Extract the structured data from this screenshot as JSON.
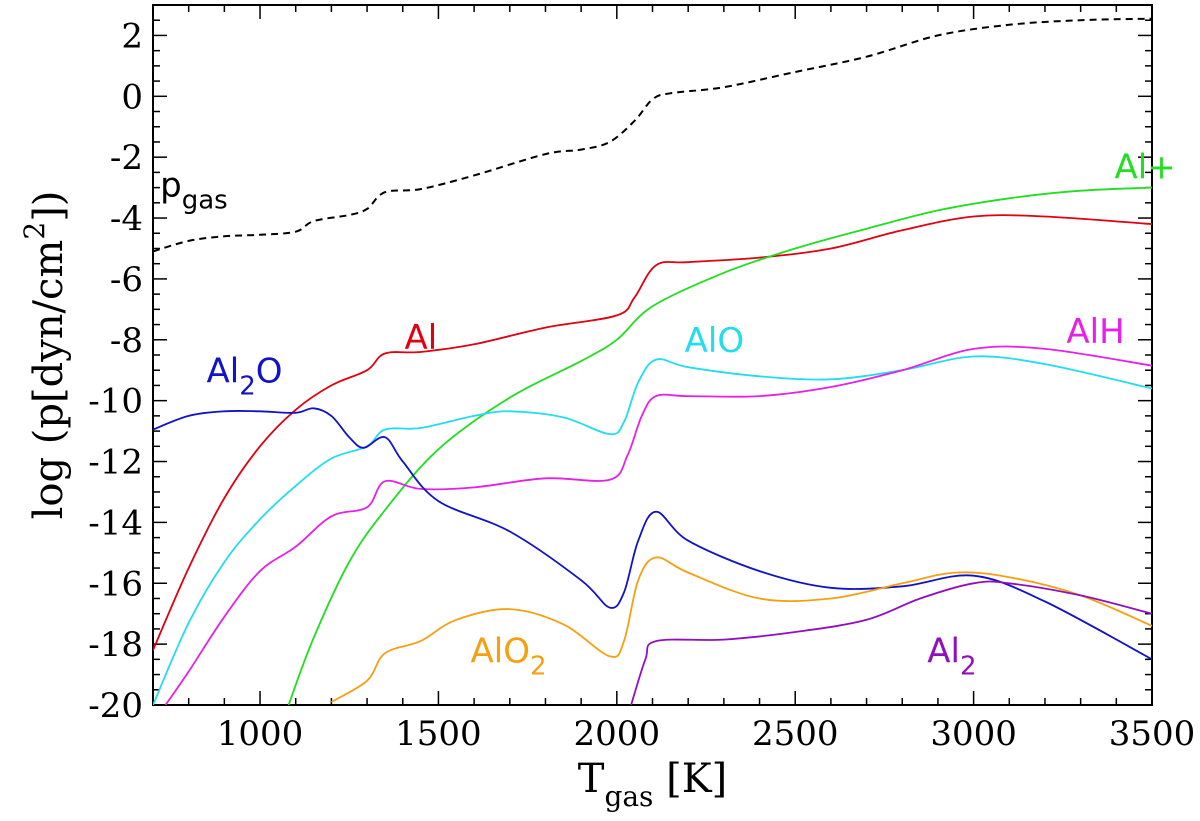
{
  "chart_data": {
    "type": "line",
    "xlabel": {
      "main": "T",
      "sub": "gas",
      "unit": " [K]"
    },
    "ylabel": {
      "a": "log (p[dyn/cm",
      "sup": "2",
      "b": "])"
    },
    "xlim": [
      700,
      3500
    ],
    "ylim": [
      -20,
      3
    ],
    "xticks": [
      1000,
      1500,
      2000,
      2500,
      3000,
      3500
    ],
    "yticks": [
      2,
      0,
      -2,
      -4,
      -6,
      -8,
      -10,
      -12,
      -14,
      -16,
      -18,
      -20
    ],
    "series": [
      {
        "name": "pgas",
        "label": {
          "main": "p",
          "sub": "gas",
          "post": ""
        },
        "color": "#000000",
        "dashed": true,
        "label_at": [
          720,
          -3.3
        ],
        "points": [
          [
            700,
            -5.1
          ],
          [
            800,
            -4.75
          ],
          [
            900,
            -4.6
          ],
          [
            1000,
            -4.55
          ],
          [
            1100,
            -4.45
          ],
          [
            1150,
            -4.1
          ],
          [
            1250,
            -3.9
          ],
          [
            1300,
            -3.7
          ],
          [
            1350,
            -3.15
          ],
          [
            1450,
            -3.05
          ],
          [
            1600,
            -2.6
          ],
          [
            1800,
            -1.9
          ],
          [
            1900,
            -1.75
          ],
          [
            1980,
            -1.5
          ],
          [
            2050,
            -0.8
          ],
          [
            2100,
            -0.1
          ],
          [
            2150,
            0.1
          ],
          [
            2300,
            0.3
          ],
          [
            2500,
            0.8
          ],
          [
            2700,
            1.3
          ],
          [
            2900,
            2.0
          ],
          [
            3100,
            2.35
          ],
          [
            3300,
            2.5
          ],
          [
            3500,
            2.55
          ]
        ]
      },
      {
        "name": "Al",
        "label": {
          "main": "Al",
          "sub": "",
          "post": ""
        },
        "color": "#e0000f",
        "dashed": false,
        "label_at": [
          1405,
          -8.3
        ],
        "points": [
          [
            700,
            -18.2
          ],
          [
            800,
            -15.5
          ],
          [
            900,
            -13.2
          ],
          [
            1000,
            -11.5
          ],
          [
            1100,
            -10.3
          ],
          [
            1200,
            -9.5
          ],
          [
            1300,
            -9.0
          ],
          [
            1350,
            -8.45
          ],
          [
            1450,
            -8.4
          ],
          [
            1600,
            -8.15
          ],
          [
            1800,
            -7.6
          ],
          [
            2000,
            -7.2
          ],
          [
            2050,
            -6.6
          ],
          [
            2110,
            -5.55
          ],
          [
            2200,
            -5.45
          ],
          [
            2400,
            -5.3
          ],
          [
            2600,
            -5.0
          ],
          [
            2800,
            -4.4
          ],
          [
            3000,
            -3.95
          ],
          [
            3200,
            -3.95
          ],
          [
            3500,
            -4.2
          ]
        ]
      },
      {
        "name": "Al+",
        "label": {
          "main": "Al+",
          "sub": "",
          "post": ""
        },
        "color": "#22dd22",
        "dashed": false,
        "label_at": [
          3395,
          -2.7
        ],
        "points": [
          [
            1080,
            -20.0
          ],
          [
            1150,
            -17.8
          ],
          [
            1250,
            -15.3
          ],
          [
            1350,
            -13.6
          ],
          [
            1500,
            -11.6
          ],
          [
            1700,
            -9.9
          ],
          [
            1900,
            -8.7
          ],
          [
            2000,
            -8.0
          ],
          [
            2100,
            -6.9
          ],
          [
            2300,
            -5.8
          ],
          [
            2500,
            -5.0
          ],
          [
            2700,
            -4.35
          ],
          [
            2900,
            -3.75
          ],
          [
            3100,
            -3.35
          ],
          [
            3300,
            -3.1
          ],
          [
            3500,
            -3.0
          ]
        ]
      },
      {
        "name": "AlO",
        "label": {
          "main": "AlO",
          "sub": "",
          "post": ""
        },
        "color": "#22ddee",
        "dashed": false,
        "label_at": [
          2190,
          -8.4
        ],
        "points": [
          [
            700,
            -20.0
          ],
          [
            800,
            -17.3
          ],
          [
            900,
            -15.3
          ],
          [
            1000,
            -13.9
          ],
          [
            1100,
            -12.8
          ],
          [
            1200,
            -11.9
          ],
          [
            1300,
            -11.5
          ],
          [
            1350,
            -10.95
          ],
          [
            1450,
            -10.9
          ],
          [
            1600,
            -10.5
          ],
          [
            1700,
            -10.35
          ],
          [
            1850,
            -10.55
          ],
          [
            1980,
            -11.1
          ],
          [
            2020,
            -10.7
          ],
          [
            2060,
            -9.4
          ],
          [
            2110,
            -8.65
          ],
          [
            2200,
            -8.9
          ],
          [
            2400,
            -9.2
          ],
          [
            2600,
            -9.3
          ],
          [
            2800,
            -9.0
          ],
          [
            3000,
            -8.55
          ],
          [
            3200,
            -8.8
          ],
          [
            3500,
            -9.6
          ]
        ]
      },
      {
        "name": "AlH",
        "label": {
          "main": "AlH",
          "sub": "",
          "post": ""
        },
        "color": "#e620e6",
        "dashed": false,
        "label_at": [
          3260,
          -8.1
        ],
        "points": [
          [
            735,
            -20.0
          ],
          [
            800,
            -18.9
          ],
          [
            900,
            -17.1
          ],
          [
            1000,
            -15.6
          ],
          [
            1100,
            -14.8
          ],
          [
            1200,
            -13.8
          ],
          [
            1300,
            -13.5
          ],
          [
            1350,
            -12.65
          ],
          [
            1450,
            -12.9
          ],
          [
            1600,
            -12.85
          ],
          [
            1800,
            -12.55
          ],
          [
            1980,
            -12.6
          ],
          [
            2030,
            -11.8
          ],
          [
            2070,
            -10.5
          ],
          [
            2110,
            -9.85
          ],
          [
            2200,
            -9.85
          ],
          [
            2400,
            -9.85
          ],
          [
            2600,
            -9.55
          ],
          [
            2800,
            -9.0
          ],
          [
            3000,
            -8.3
          ],
          [
            3200,
            -8.3
          ],
          [
            3500,
            -8.85
          ]
        ]
      },
      {
        "name": "Al2O",
        "label": {
          "main": "Al",
          "sub": "2",
          "post": "O"
        },
        "color": "#1212c8",
        "dashed": false,
        "label_at": [
          850,
          -9.4
        ],
        "points": [
          [
            700,
            -10.95
          ],
          [
            800,
            -10.5
          ],
          [
            900,
            -10.35
          ],
          [
            1000,
            -10.35
          ],
          [
            1100,
            -10.4
          ],
          [
            1150,
            -10.25
          ],
          [
            1200,
            -10.5
          ],
          [
            1250,
            -11.2
          ],
          [
            1290,
            -11.55
          ],
          [
            1350,
            -11.2
          ],
          [
            1400,
            -12.0
          ],
          [
            1500,
            -13.3
          ],
          [
            1700,
            -14.3
          ],
          [
            1900,
            -15.9
          ],
          [
            1980,
            -16.8
          ],
          [
            2020,
            -16.3
          ],
          [
            2060,
            -14.6
          ],
          [
            2110,
            -13.65
          ],
          [
            2200,
            -14.6
          ],
          [
            2400,
            -15.6
          ],
          [
            2600,
            -16.15
          ],
          [
            2800,
            -16.1
          ],
          [
            3000,
            -15.75
          ],
          [
            3200,
            -16.6
          ],
          [
            3500,
            -18.5
          ]
        ]
      },
      {
        "name": "AlO2",
        "label": {
          "main": "AlO",
          "sub": "2",
          "post": ""
        },
        "color": "#f5a010",
        "dashed": false,
        "label_at": [
          1590,
          -18.6
        ],
        "points": [
          [
            1200,
            -19.9
          ],
          [
            1300,
            -19.2
          ],
          [
            1350,
            -18.3
          ],
          [
            1450,
            -17.9
          ],
          [
            1550,
            -17.2
          ],
          [
            1700,
            -16.85
          ],
          [
            1850,
            -17.35
          ],
          [
            1980,
            -18.4
          ],
          [
            2020,
            -17.9
          ],
          [
            2060,
            -15.9
          ],
          [
            2110,
            -15.15
          ],
          [
            2200,
            -15.65
          ],
          [
            2400,
            -16.5
          ],
          [
            2600,
            -16.5
          ],
          [
            2800,
            -16.0
          ],
          [
            2950,
            -15.65
          ],
          [
            3100,
            -15.8
          ],
          [
            3300,
            -16.4
          ],
          [
            3500,
            -17.4
          ]
        ]
      },
      {
        "name": "Al2",
        "label": {
          "main": "Al",
          "sub": "2",
          "post": ""
        },
        "color": "#9010c0",
        "dashed": false,
        "label_at": [
          2870,
          -18.6
        ],
        "points": [
          [
            2040,
            -20.0
          ],
          [
            2080,
            -18.5
          ],
          [
            2110,
            -17.9
          ],
          [
            2300,
            -17.85
          ],
          [
            2500,
            -17.6
          ],
          [
            2700,
            -17.2
          ],
          [
            2850,
            -16.5
          ],
          [
            3000,
            -16.0
          ],
          [
            3100,
            -16.0
          ],
          [
            3300,
            -16.4
          ],
          [
            3500,
            -17.0
          ]
        ]
      }
    ]
  }
}
